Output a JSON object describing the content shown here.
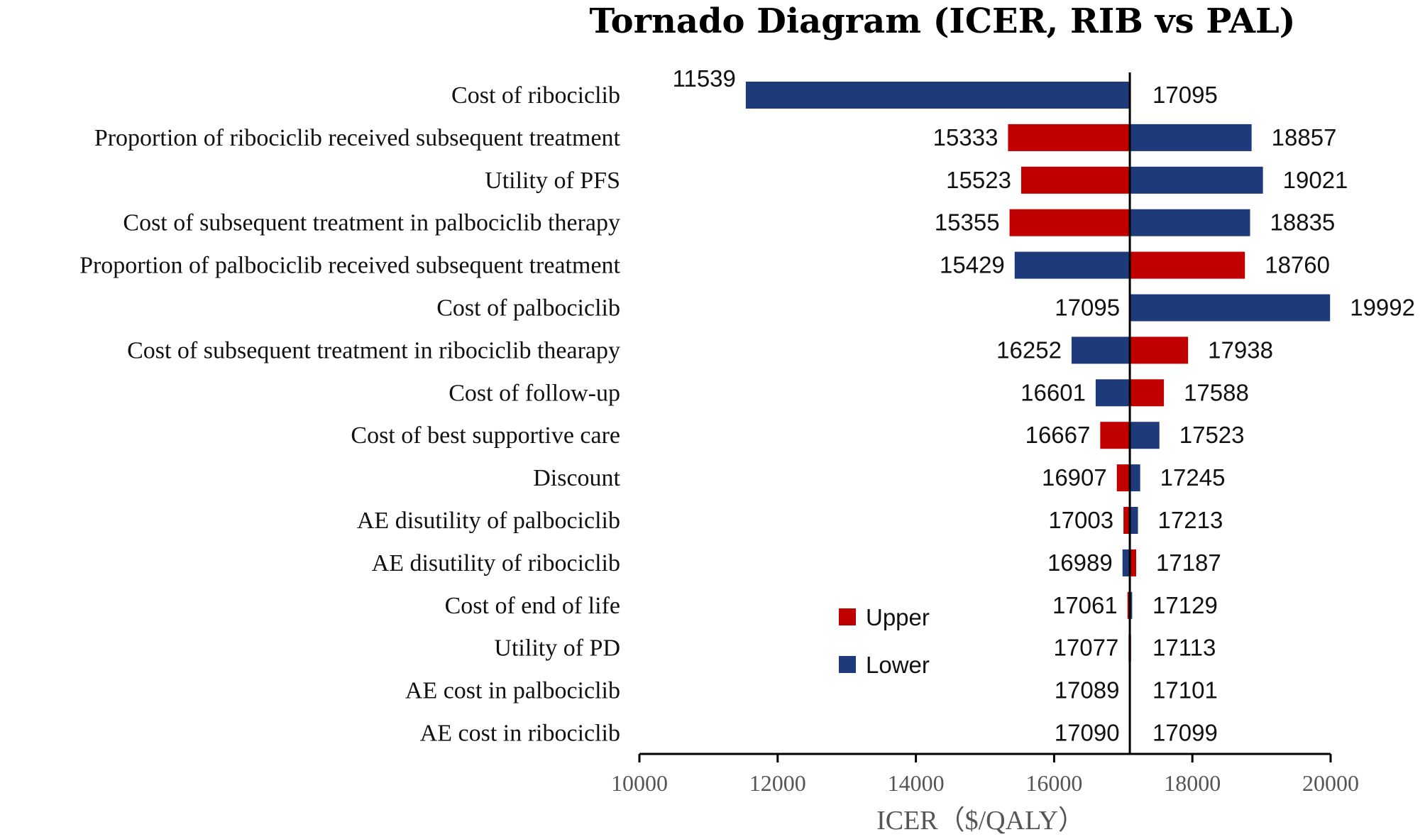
{
  "chart_data": {
    "type": "tornado",
    "title": "Tornado Diagram (ICER, RIB vs PAL)",
    "xlabel": "ICER（$/QALY）",
    "xlim": [
      10000,
      20000
    ],
    "xticks": [
      "10000",
      "12000",
      "14000",
      "16000",
      "18000",
      "20000"
    ],
    "base_value": 17095,
    "legend": [
      {
        "name": "Upper",
        "color": "#c00000"
      },
      {
        "name": "Lower",
        "color": "#1f3a7a"
      }
    ],
    "parameters": [
      {
        "label": "Cost of ribociclib",
        "left": 11539,
        "right": 17095,
        "left_series": "Lower",
        "right_series": "Upper"
      },
      {
        "label": "Proportion of ribociclib received subsequent treatment",
        "left": 15333,
        "right": 18857,
        "left_series": "Upper",
        "right_series": "Lower"
      },
      {
        "label": "Utility of PFS",
        "left": 15523,
        "right": 19021,
        "left_series": "Upper",
        "right_series": "Lower"
      },
      {
        "label": "Cost of subsequent treatment in palbociclib therapy",
        "left": 15355,
        "right": 18835,
        "left_series": "Upper",
        "right_series": "Lower"
      },
      {
        "label": "Proportion of palbociclib received subsequent treatment",
        "left": 15429,
        "right": 18760,
        "left_series": "Lower",
        "right_series": "Upper"
      },
      {
        "label": "Cost of palbociclib",
        "left": 17095,
        "right": 19992,
        "left_series": "Upper",
        "right_series": "Lower"
      },
      {
        "label": "Cost of subsequent treatment in ribociclib thearapy",
        "left": 16252,
        "right": 17938,
        "left_series": "Lower",
        "right_series": "Upper"
      },
      {
        "label": "Cost of follow-up",
        "left": 16601,
        "right": 17588,
        "left_series": "Lower",
        "right_series": "Upper"
      },
      {
        "label": "Cost of best supportive care",
        "left": 16667,
        "right": 17523,
        "left_series": "Upper",
        "right_series": "Lower"
      },
      {
        "label": "Discount",
        "left": 16907,
        "right": 17245,
        "left_series": "Upper",
        "right_series": "Lower"
      },
      {
        "label": "AE disutility of palbociclib",
        "left": 17003,
        "right": 17213,
        "left_series": "Upper",
        "right_series": "Lower"
      },
      {
        "label": "AE disutility of ribociclib",
        "left": 16989,
        "right": 17187,
        "left_series": "Lower",
        "right_series": "Upper"
      },
      {
        "label": "Cost of end of life",
        "left": 17061,
        "right": 17129,
        "left_series": "Upper",
        "right_series": "Lower"
      },
      {
        "label": "Utility of PD",
        "left": 17077,
        "right": 17113,
        "left_series": "Lower",
        "right_series": "Upper"
      },
      {
        "label": "AE cost in palbociclib",
        "left": 17089,
        "right": 17101,
        "left_series": "Upper",
        "right_series": "Lower"
      },
      {
        "label": "AE cost in ribociclib",
        "left": 17090,
        "right": 17099,
        "left_series": "Upper",
        "right_series": "Lower"
      }
    ]
  }
}
